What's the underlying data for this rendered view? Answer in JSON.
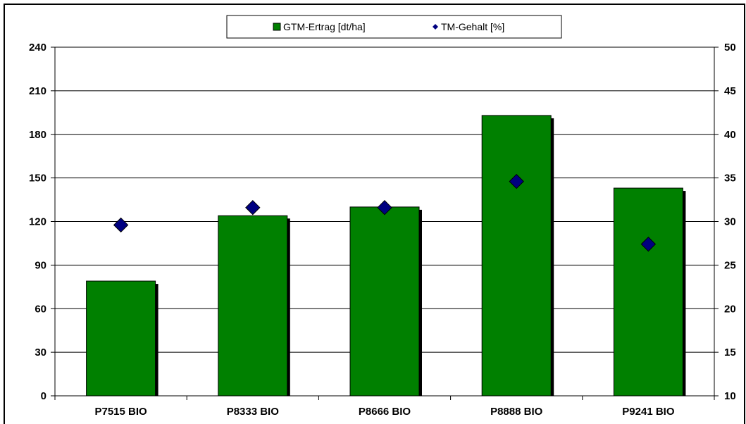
{
  "chart_data": {
    "type": "bar",
    "title": "",
    "xlabel": "",
    "ylabel": "",
    "y2label": "",
    "categories": [
      "P7515 BIO",
      "P8333 BIO",
      "P8666 BIO",
      "P8888 BIO",
      "P9241 BIO"
    ],
    "series": [
      {
        "name": "GTM-Ertrag [dt/ha]",
        "type": "bar",
        "axis": "left",
        "color": "#008000",
        "values": [
          79,
          124,
          130,
          193,
          143
        ]
      },
      {
        "name": "TM-Gehalt [%]",
        "type": "scatter",
        "axis": "right",
        "color": "#000080",
        "values": [
          29.6,
          31.6,
          31.6,
          34.6,
          27.4
        ]
      }
    ],
    "ylim": [
      0,
      240
    ],
    "yticks": [
      0,
      30,
      60,
      90,
      120,
      150,
      180,
      210,
      240
    ],
    "y2lim": [
      10,
      50
    ],
    "y2ticks": [
      10,
      15,
      20,
      25,
      30,
      35,
      40,
      45,
      50
    ],
    "grid": true,
    "legend_position": "top-center"
  }
}
